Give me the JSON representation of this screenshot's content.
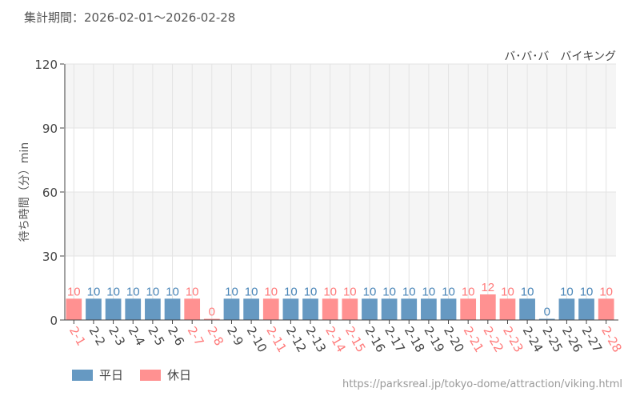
{
  "header": {
    "period": "集計期間：2026-02-01～2026-02-28",
    "attraction": "バ･バ･バ　バイキング"
  },
  "footer": {
    "url": "https://parksreal.jp/tokyo-dome/attraction/viking.html"
  },
  "colors": {
    "weekday": "#6699c2",
    "holiday": "#ff9191",
    "weekday_label": "#4a86b8",
    "holiday_label": "#ff7a7a",
    "band": "#f5f5f5"
  },
  "chart_data": {
    "type": "bar",
    "ylabel": "待ち時間（分）min",
    "ylim": [
      0,
      120
    ],
    "yticks": [
      0,
      30,
      60,
      90,
      120
    ],
    "grid": true,
    "legend_placement": "bottom-left",
    "legend": [
      {
        "key": "weekday",
        "label": "平日"
      },
      {
        "key": "holiday",
        "label": "休日"
      }
    ],
    "categories": [
      "2-1",
      "2-2",
      "2-3",
      "2-4",
      "2-5",
      "2-6",
      "2-7",
      "2-8",
      "2-9",
      "2-10",
      "2-11",
      "2-12",
      "2-13",
      "2-14",
      "2-15",
      "2-16",
      "2-17",
      "2-18",
      "2-19",
      "2-20",
      "2-21",
      "2-22",
      "2-23",
      "2-24",
      "2-25",
      "2-26",
      "2-27",
      "2-28"
    ],
    "values": [
      10,
      10,
      10,
      10,
      10,
      10,
      10,
      0,
      10,
      10,
      10,
      10,
      10,
      10,
      10,
      10,
      10,
      10,
      10,
      10,
      10,
      12,
      10,
      10,
      0,
      10,
      10,
      10
    ],
    "day_type": [
      "holiday",
      "weekday",
      "weekday",
      "weekday",
      "weekday",
      "weekday",
      "holiday",
      "holiday",
      "weekday",
      "weekday",
      "holiday",
      "weekday",
      "weekday",
      "holiday",
      "holiday",
      "weekday",
      "weekday",
      "weekday",
      "weekday",
      "weekday",
      "holiday",
      "holiday",
      "holiday",
      "weekday",
      "weekday",
      "weekday",
      "weekday",
      "holiday"
    ]
  }
}
